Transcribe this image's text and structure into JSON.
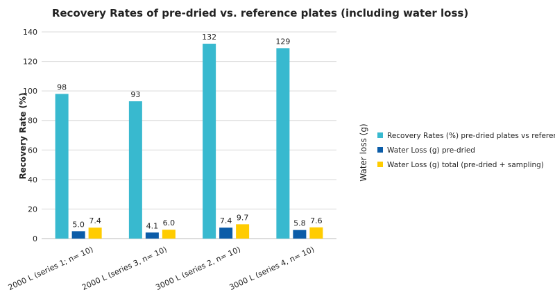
{
  "chart_data": {
    "type": "bar",
    "title": "Recovery Rates of pre-dried vs. reference plates (including water loss)",
    "ylabel": "Recovery Rate (%)",
    "y2label": "Water loss (g)",
    "ylim": [
      0,
      140
    ],
    "yticks": [
      0,
      20,
      40,
      60,
      80,
      100,
      120,
      140
    ],
    "grid": true,
    "legend_position": "right",
    "categories": [
      "2000 L (series 1; n= 10)",
      "2000 L (series 3, n= 10)",
      "3000 L (series 2, n= 10)",
      "3000 L (series 4, n= 10)"
    ],
    "series": [
      {
        "name": "Recovery Rates (%) pre-dried plates vs reference",
        "values": [
          98,
          93,
          132,
          129
        ],
        "labels": [
          "98",
          "93",
          "132",
          "129"
        ],
        "color": "#38b9cf"
      },
      {
        "name": "Water Loss (g) pre-dried",
        "values": [
          5.0,
          4.1,
          7.4,
          5.8
        ],
        "labels": [
          "5.0",
          "4.1",
          "7.4",
          "5.8"
        ],
        "color": "#0b5ca8"
      },
      {
        "name": "Water Loss (g) total (pre-dried + sampling)",
        "values": [
          7.4,
          6.0,
          9.7,
          7.6
        ],
        "labels": [
          "7.4",
          "6.0",
          "9.7",
          "7.6"
        ],
        "color": "#ffcc00"
      }
    ]
  }
}
